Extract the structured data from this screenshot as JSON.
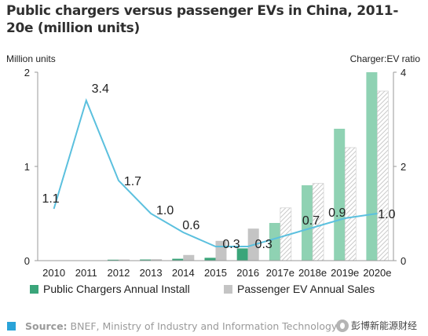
{
  "title": "Public chargers versus passenger EVs in China, 2011-20e (million units)",
  "source_label": "Source:",
  "source_text": " BNEF, Ministry of Industry and Information Technology",
  "watermark_text": "彭博新能源财经",
  "chart_data": {
    "type": "bar",
    "categories": [
      "2010",
      "2011",
      "2012",
      "2013",
      "2014",
      "2015",
      "2016",
      "2017e",
      "2018e",
      "2019e",
      "2020e"
    ],
    "left_axis": {
      "label": "Million units",
      "ylim": [
        0,
        2
      ],
      "ticks": [
        "0",
        "1",
        "2"
      ]
    },
    "right_axis": {
      "label": "Charger:EV ratio",
      "ylim": [
        0,
        4
      ],
      "ticks": [
        "0",
        "2",
        "4"
      ]
    },
    "series": [
      {
        "name": "Public Chargers Annual Install",
        "type": "bar",
        "axis": "left",
        "color": "#8fd2b3",
        "solid_color": "#3aa57a",
        "values": [
          0.002,
          0.004,
          0.01,
          0.012,
          0.02,
          0.03,
          0.13,
          0.4,
          0.8,
          1.4,
          2.0
        ]
      },
      {
        "name": "Passenger EV Annual Sales",
        "type": "bar",
        "axis": "left",
        "color": "#c4c4c4",
        "values": [
          0.002,
          0.003,
          0.012,
          0.015,
          0.06,
          0.21,
          0.34,
          0.56,
          0.82,
          1.2,
          1.8
        ]
      },
      {
        "name": "Charger:EV ratio",
        "type": "line",
        "axis": "right",
        "color": "#5bc0de",
        "values": [
          1.1,
          3.4,
          1.7,
          1.0,
          0.6,
          0.3,
          0.3,
          null,
          0.7,
          0.9,
          1.0
        ],
        "labels": [
          "1.1",
          "3.4",
          "1.7",
          "1.0",
          "0.6",
          "0.3",
          "0.3",
          "",
          "0.7",
          "0.9",
          "1.0"
        ]
      }
    ],
    "grid": false,
    "legend_position": "bottom"
  },
  "legend": [
    {
      "label": "Public Chargers Annual Install",
      "color": "#3aa57a"
    },
    {
      "label": "Passenger EV Annual Sales",
      "color": "#c4c4c4"
    }
  ]
}
